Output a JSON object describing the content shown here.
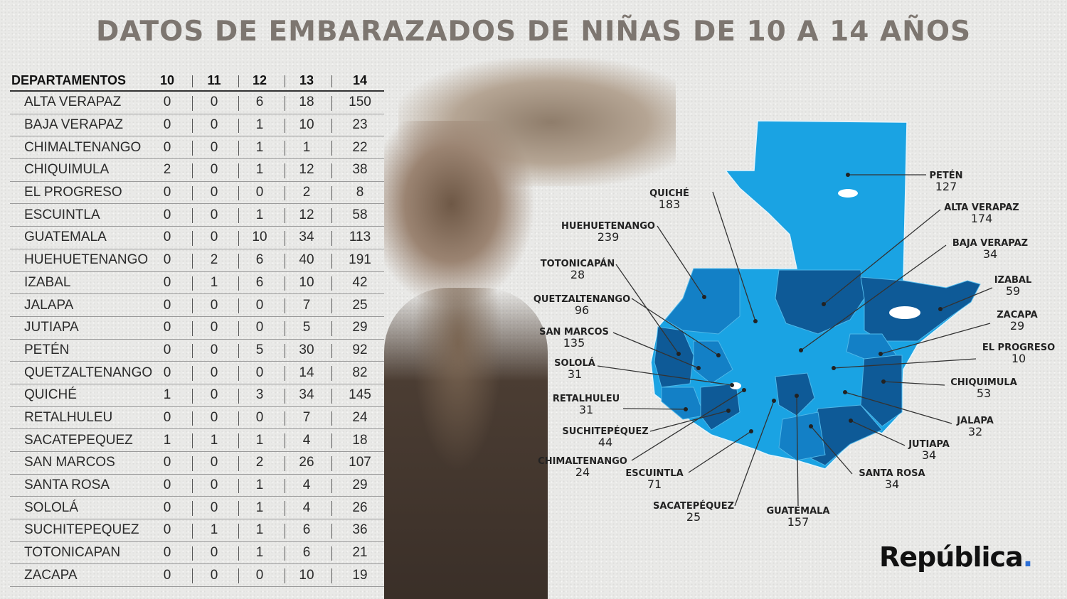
{
  "title": "DATOS DE EMBARAZADOS DE NIÑAS DE 10 A 14 AÑOS",
  "brand": {
    "name": "República",
    "dot": ".",
    "accent": "#2c6fd6"
  },
  "chart_data": [
    {
      "type": "table",
      "columns": [
        "DEPARTAMENTOS",
        "10",
        "11",
        "12",
        "13",
        "14"
      ],
      "rows": [
        [
          "ALTA VERAPAZ",
          0,
          0,
          6,
          18,
          150
        ],
        [
          "BAJA VERAPAZ",
          0,
          0,
          1,
          10,
          23
        ],
        [
          "CHIMALTENANGO",
          0,
          0,
          1,
          1,
          22
        ],
        [
          "CHIQUIMULA",
          2,
          0,
          1,
          12,
          38
        ],
        [
          "EL PROGRESO",
          0,
          0,
          0,
          2,
          8
        ],
        [
          "ESCUINTLA",
          0,
          0,
          1,
          12,
          58
        ],
        [
          "GUATEMALA",
          0,
          0,
          10,
          34,
          113
        ],
        [
          "HUEHUETENANGO",
          0,
          2,
          6,
          40,
          191
        ],
        [
          "IZABAL",
          0,
          1,
          6,
          10,
          42
        ],
        [
          "JALAPA",
          0,
          0,
          0,
          7,
          25
        ],
        [
          "JUTIAPA",
          0,
          0,
          0,
          5,
          29
        ],
        [
          "PETÉN",
          0,
          0,
          5,
          30,
          92
        ],
        [
          "QUETZALTENANGO",
          0,
          0,
          0,
          14,
          82
        ],
        [
          "QUICHÉ",
          1,
          0,
          3,
          34,
          145
        ],
        [
          "RETALHULEU",
          0,
          0,
          0,
          7,
          24
        ],
        [
          "SACATEPEQUEZ",
          1,
          1,
          1,
          4,
          18
        ],
        [
          "SAN MARCOS",
          0,
          0,
          2,
          26,
          107
        ],
        [
          "SANTA ROSA",
          0,
          0,
          1,
          4,
          29
        ],
        [
          "SOLOLÁ",
          0,
          0,
          1,
          4,
          26
        ],
        [
          "SUCHITEPEQUEZ",
          0,
          1,
          1,
          6,
          36
        ],
        [
          "TOTONICAPAN",
          0,
          0,
          1,
          6,
          21
        ],
        [
          "ZACAPA",
          0,
          0,
          0,
          10,
          19
        ]
      ]
    },
    {
      "type": "map",
      "colors": {
        "light": "#1aa3e3",
        "mid": "#1380c6",
        "dark": "#0e5a97"
      },
      "regions": [
        {
          "name": "PETÉN",
          "value": 127
        },
        {
          "name": "ALTA VERAPAZ",
          "value": 174
        },
        {
          "name": "BAJA VERAPAZ",
          "value": 34
        },
        {
          "name": "IZABAL",
          "value": 59
        },
        {
          "name": "ZACAPA",
          "value": 29
        },
        {
          "name": "EL PROGRESO",
          "value": 10
        },
        {
          "name": "CHIQUIMULA",
          "value": 53
        },
        {
          "name": "JALAPA",
          "value": 32
        },
        {
          "name": "JUTIAPA",
          "value": 34
        },
        {
          "name": "SANTA ROSA",
          "value": 34
        },
        {
          "name": "GUATEMALA",
          "value": 157
        },
        {
          "name": "SACATEPÉQUEZ",
          "value": 25
        },
        {
          "name": "ESCUINTLA",
          "value": 71
        },
        {
          "name": "CHIMALTENANGO",
          "value": 24
        },
        {
          "name": "SUCHITEPÉQUEZ",
          "value": 44
        },
        {
          "name": "RETALHULEU",
          "value": 31
        },
        {
          "name": "SOLOLÁ",
          "value": 31
        },
        {
          "name": "SAN MARCOS",
          "value": 135
        },
        {
          "name": "QUETZALTENANGO",
          "value": 96
        },
        {
          "name": "TOTONICAPÁN",
          "value": 28
        },
        {
          "name": "HUEHUETENANGO",
          "value": 239
        },
        {
          "name": "QUICHÉ",
          "value": 183
        }
      ]
    }
  ]
}
